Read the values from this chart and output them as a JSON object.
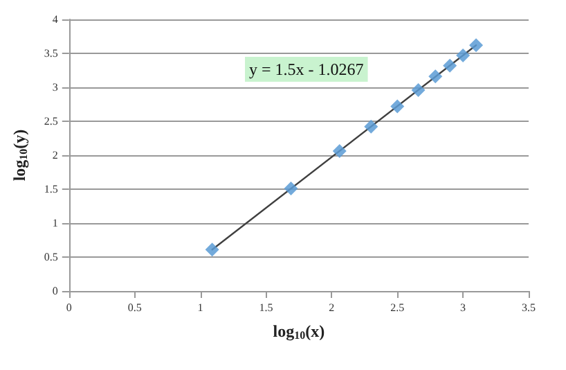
{
  "chart_data": {
    "type": "scatter",
    "xlabel": "log$_{10}$(x)",
    "ylabel": "log$_{10}$(y)",
    "annotations": [
      "y = 1.5x - 1.0267"
    ],
    "series": [
      {
        "color": "#5b9bd5",
        "marker": "diamond",
        "x": [
          1.09,
          1.69,
          2.06,
          2.3,
          2.5,
          2.66,
          2.79,
          2.9,
          3.0,
          3.1
        ],
        "values": [
          0.61,
          1.51,
          2.06,
          2.42,
          2.72,
          2.96,
          3.16,
          3.32,
          3.47,
          3.62
        ]
      },
      {
        "type": "line",
        "color": "#404040",
        "marker": "none",
        "x": [
          1.09,
          3.1
        ],
        "values": [
          0.61,
          3.62
        ]
      }
    ],
    "xlim": [
      0,
      3.5
    ],
    "xticks": [
      0,
      0.5,
      1,
      1.5,
      2,
      2.5,
      3,
      3.5
    ],
    "ylim": [
      0,
      4
    ],
    "yticks": [
      0,
      0.5,
      1,
      1.5,
      2,
      2.5,
      3,
      3.5,
      4
    ],
    "grid": "y"
  }
}
